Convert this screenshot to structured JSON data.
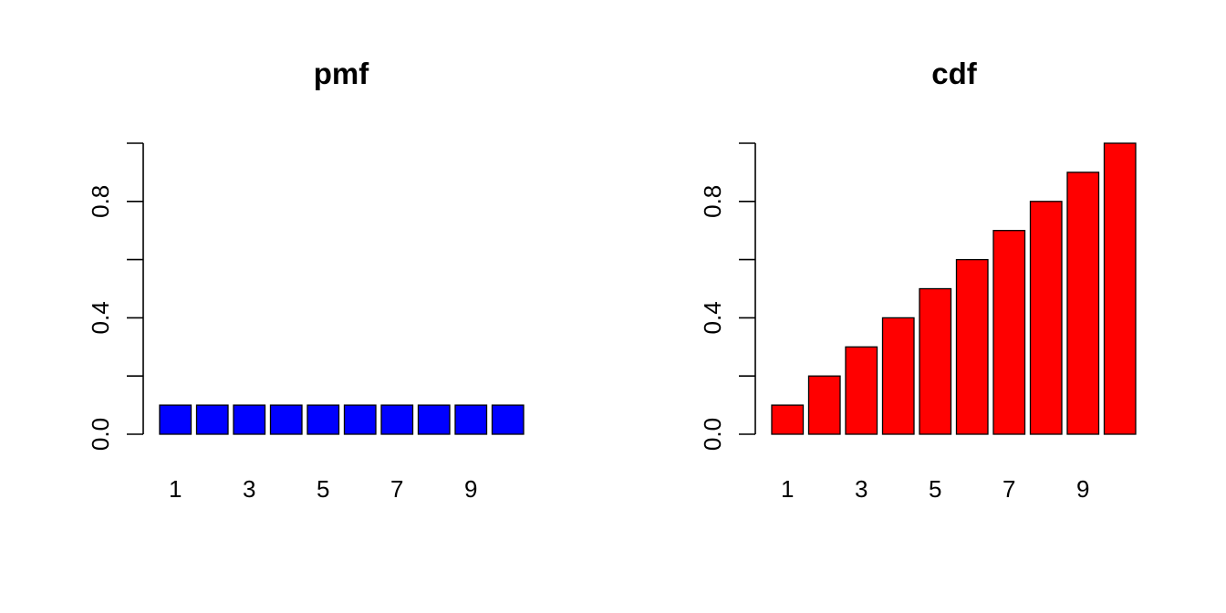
{
  "chart_data": [
    {
      "type": "bar",
      "title": "pmf",
      "xlabel": "",
      "ylabel": "",
      "categories": [
        "1",
        "2",
        "3",
        "4",
        "5",
        "6",
        "7",
        "8",
        "9",
        "10"
      ],
      "values": [
        0.1,
        0.1,
        0.1,
        0.1,
        0.1,
        0.1,
        0.1,
        0.1,
        0.1,
        0.1
      ],
      "ylim": [
        0,
        1
      ],
      "y_ticks": [
        0,
        0.2,
        0.4,
        0.6,
        0.8,
        1.0
      ],
      "y_tick_labels": [
        "0.0",
        "",
        "0.4",
        "",
        "0.8",
        ""
      ],
      "x_tick_labels": [
        "1",
        "",
        "3",
        "",
        "5",
        "",
        "7",
        "",
        "9",
        ""
      ],
      "bar_color": "#0000ff",
      "grid": false,
      "legend": "none"
    },
    {
      "type": "bar",
      "title": "cdf",
      "xlabel": "",
      "ylabel": "",
      "categories": [
        "1",
        "2",
        "3",
        "4",
        "5",
        "6",
        "7",
        "8",
        "9",
        "10"
      ],
      "values": [
        0.1,
        0.2,
        0.3,
        0.4,
        0.5,
        0.6,
        0.7,
        0.8,
        0.9,
        1.0
      ],
      "ylim": [
        0,
        1
      ],
      "y_ticks": [
        0,
        0.2,
        0.4,
        0.6,
        0.8,
        1.0
      ],
      "y_tick_labels": [
        "0.0",
        "",
        "0.4",
        "",
        "0.8",
        ""
      ],
      "x_tick_labels": [
        "1",
        "",
        "3",
        "",
        "5",
        "",
        "7",
        "",
        "9",
        ""
      ],
      "bar_color": "#ff0000",
      "grid": false,
      "legend": "none"
    }
  ]
}
